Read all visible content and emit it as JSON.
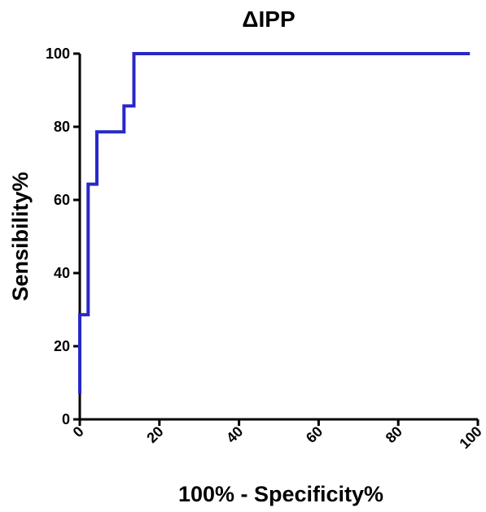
{
  "chart_data": {
    "type": "line",
    "title": "ΔIPP",
    "xlabel": "100% - Specificity%",
    "ylabel": "Sensibility%",
    "xlim": [
      0,
      100
    ],
    "ylim": [
      0,
      100
    ],
    "xticks": [
      "0",
      "20",
      "40",
      "60",
      "80",
      "100"
    ],
    "yticks": [
      "0",
      "20",
      "40",
      "60",
      "80",
      "100"
    ],
    "grid": false,
    "series": [
      {
        "color": "#2828c8",
        "x": [
          0,
          0,
          2.1,
          2.1,
          4.3,
          4.3,
          11.1,
          11.1,
          13.6,
          13.6,
          98
        ],
        "y": [
          7,
          28.6,
          28.6,
          64.3,
          64.3,
          78.6,
          78.6,
          85.7,
          85.7,
          100,
          100
        ]
      }
    ]
  }
}
